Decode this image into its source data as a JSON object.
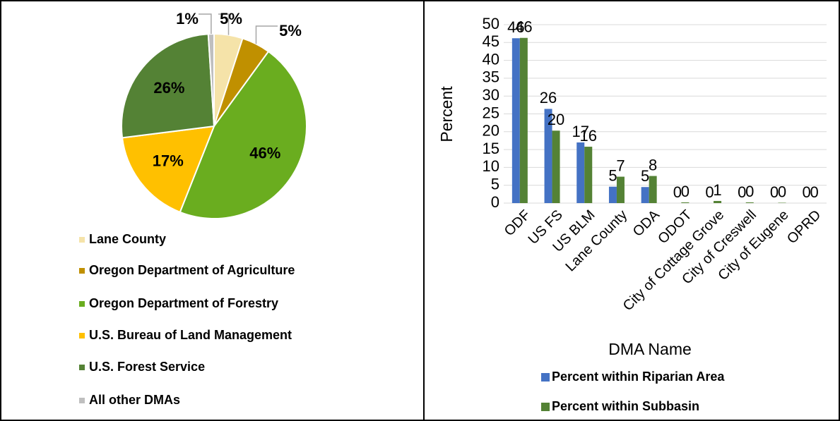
{
  "chart_data": [
    {
      "type": "pie",
      "categories": [
        "Lane County",
        "Oregon Department of Agriculture",
        "Oregon Department of Forestry",
        "U.S. Bureau of Land Management",
        "U.S. Forest Service",
        "All other DMAs"
      ],
      "values": [
        5,
        5,
        46,
        17,
        26,
        1
      ],
      "value_labels": [
        "5%",
        "5%",
        "46%",
        "17%",
        "26%",
        "1%"
      ],
      "colors": [
        "#f5e3a9",
        "#c09000",
        "#6aad1f",
        "#ffc000",
        "#548235",
        "#bfbfbf"
      ]
    },
    {
      "type": "bar",
      "categories": [
        "ODF",
        "US FS",
        "US BLM",
        "Lane County",
        "ODA",
        "ODOT",
        "City of Cottage Grove",
        "City of Creswell",
        "City of Eugene",
        "OPRD"
      ],
      "series": [
        {
          "name": "Percent within Riparian Area",
          "color": "#4472c4",
          "values": [
            46.2,
            26.4,
            17.0,
            4.6,
            4.5,
            0,
            0,
            0,
            0,
            0
          ],
          "value_labels": [
            "46",
            "26",
            "17",
            "5",
            "5",
            "0",
            "0",
            "0",
            "0",
            "0"
          ]
        },
        {
          "name": "Percent within Subbasin",
          "color": "#548235",
          "values": [
            46.3,
            20.3,
            15.8,
            7.4,
            7.6,
            0.2,
            0.6,
            0.2,
            0.1,
            0
          ],
          "value_labels": [
            "46",
            "20",
            "16",
            "7",
            "8",
            "0",
            "1",
            "0",
            "0",
            "0"
          ]
        }
      ],
      "ylabel": "Percent",
      "xlabel": "DMA Name",
      "ylim": [
        0,
        50
      ],
      "yticks": [
        0,
        5,
        10,
        15,
        20,
        25,
        30,
        35,
        40,
        45,
        50
      ],
      "grid": true
    }
  ]
}
